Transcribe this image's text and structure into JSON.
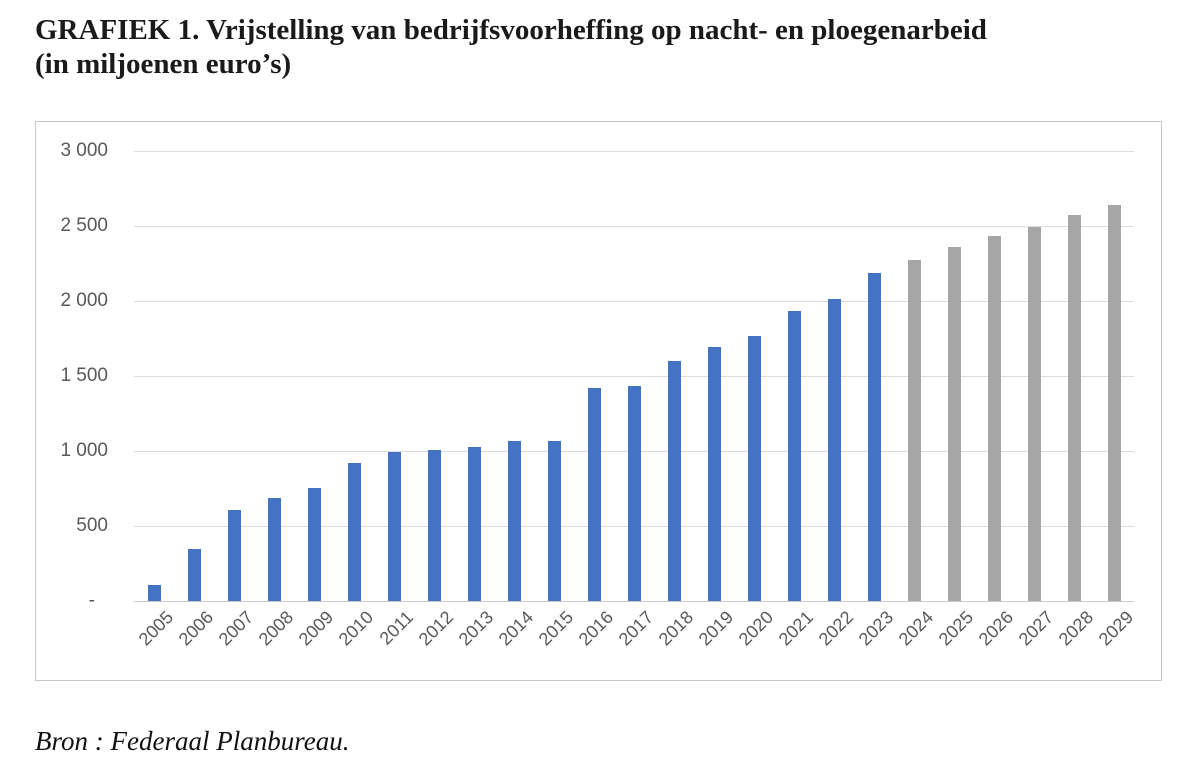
{
  "title": {
    "line1": "GRAFIEK 1. Vrijstelling van bedrijfsvoorheffing op nacht- en ploegenarbeid",
    "line2": "(in miljoenen euro’s)"
  },
  "source": "Bron : Federaal Planbureau.",
  "chart_data": {
    "type": "bar",
    "title": "GRAFIEK 1. Vrijstelling van bedrijfsvoorheffing op nacht- en ploegenarbeid (in miljoenen euro’s)",
    "unit": "miljoenen euro’s",
    "categories": [
      "2005",
      "2006",
      "2007",
      "2008",
      "2009",
      "2010",
      "2011",
      "2012",
      "2013",
      "2014",
      "2015",
      "2016",
      "2017",
      "2018",
      "2019",
      "2020",
      "2021",
      "2022",
      "2023",
      "2024",
      "2025",
      "2026",
      "2027",
      "2028",
      "2029"
    ],
    "values": [
      110,
      345,
      610,
      690,
      755,
      920,
      995,
      1010,
      1025,
      1065,
      1070,
      1420,
      1435,
      1600,
      1695,
      1770,
      1935,
      2015,
      2190,
      2275,
      2360,
      2435,
      2495,
      2575,
      2640
    ],
    "actual_range": "2005-2023",
    "projection_range": "2024-2029",
    "last_actual_year": "2023",
    "bar_color_actual": "#4472C4",
    "bar_color_projection": "#A6A6A6",
    "y_ticks": [
      {
        "label": "3 000",
        "value": 3000
      },
      {
        "label": "2 500",
        "value": 2500
      },
      {
        "label": "2 000",
        "value": 2000
      },
      {
        "label": "1 500",
        "value": 1500
      },
      {
        "label": "1 000",
        "value": 1000
      },
      {
        "label": "500",
        "value": 500
      },
      {
        "label": "-",
        "value": 0
      }
    ],
    "ylim": [
      0,
      3000
    ],
    "xlabel": "",
    "ylabel": "",
    "grid": true,
    "legend": "none",
    "x_label_rotation_deg": 45,
    "gridline_color": "#dcdcdc",
    "axis_label_color": "#595959"
  }
}
